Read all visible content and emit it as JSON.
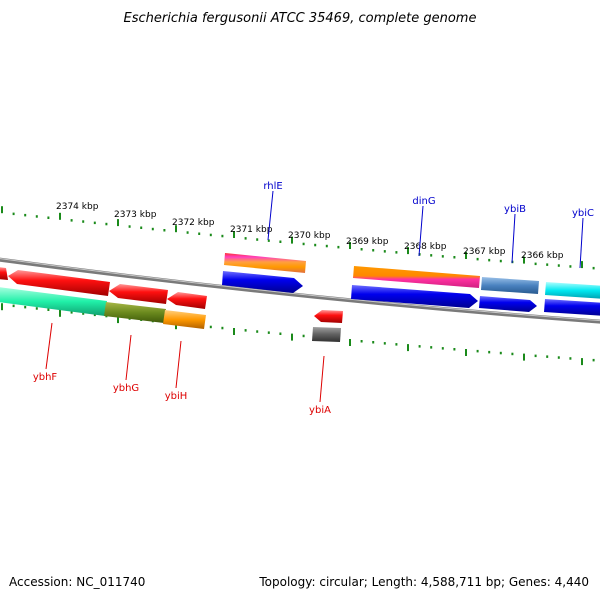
{
  "title": "Escherichia fergusonii ATCC 35469, complete genome",
  "footer": {
    "accession": "Accession: NC_011740",
    "topology": "Topology: circular; Length: 4,588,711 bp; Genes: 4,440"
  },
  "colors": {
    "backbone": "#8a8a8a",
    "ticks": "#1a8a1a",
    "label_forward": "#0000cc",
    "label_reverse": "#dd0000"
  },
  "scale_labels": [
    "2374 kbp",
    "2373 kbp",
    "2372 kbp",
    "2371 kbp",
    "2370 kbp",
    "2369 kbp",
    "2368 kbp",
    "2367 kbp",
    "2366 kbp"
  ],
  "gene_labels": {
    "rhlE": "rhlE",
    "dinG": "dinG",
    "ybiB": "ybiB",
    "ybiC": "ybiC",
    "ybhF": "ybhF",
    "ybhG": "ybhG",
    "ybiH": "ybiH",
    "ybiA": "ybiA"
  }
}
